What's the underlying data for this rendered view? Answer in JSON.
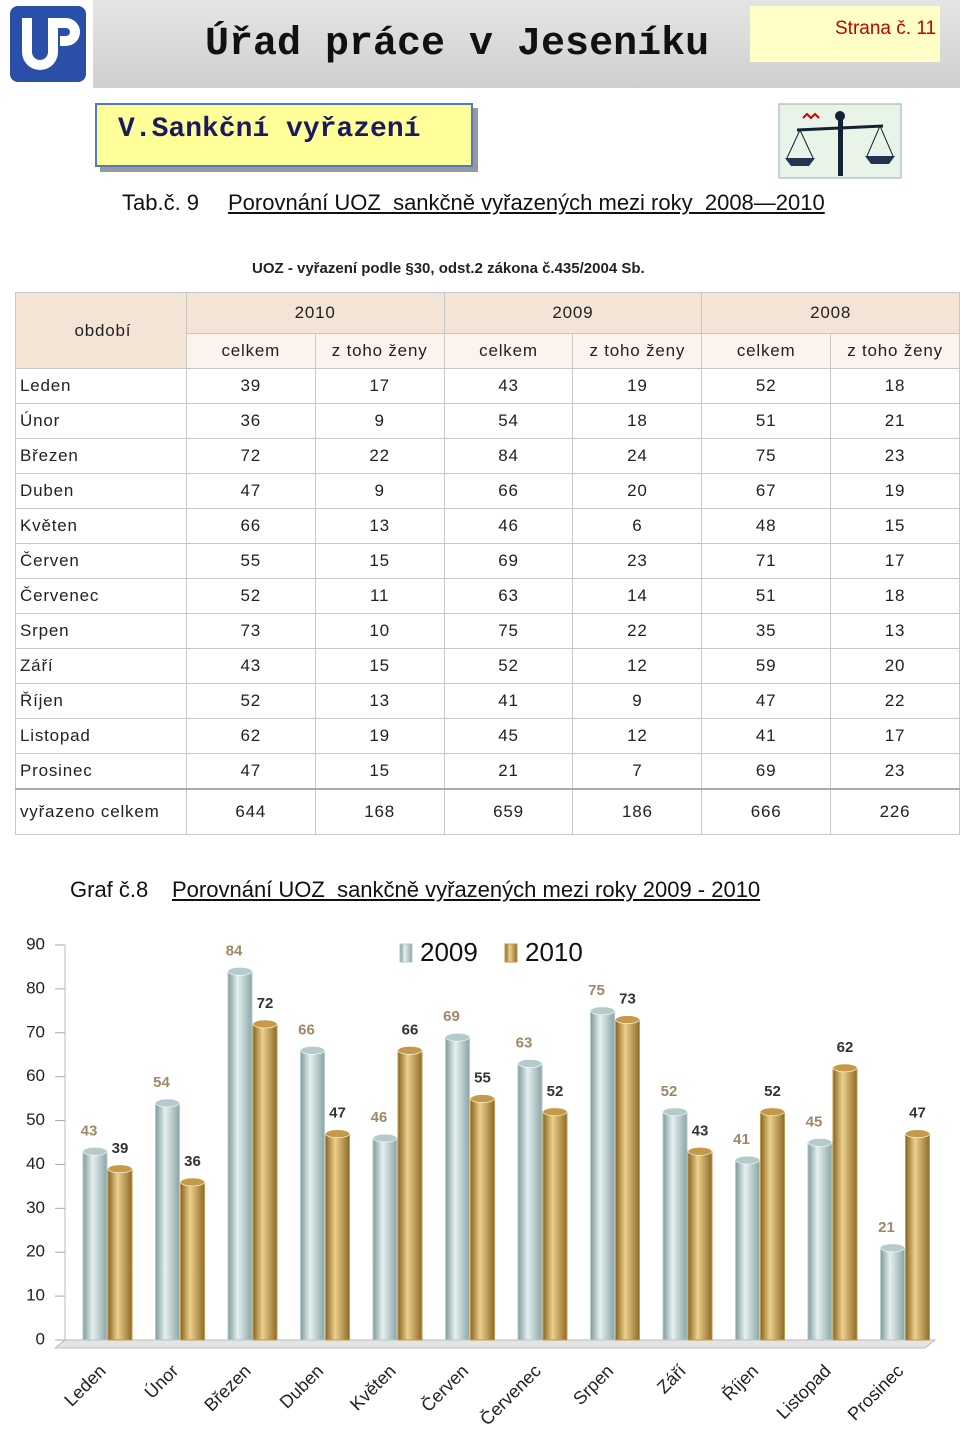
{
  "header": {
    "title": "Úřad práce v Jeseníku",
    "page": "Strana č. 11"
  },
  "section": "V.Sankční vyřazení",
  "table_caption": {
    "number": "Tab.č. 9",
    "text": "Porovnání UOZ  sankčně vyřazených mezi roky  2008—2010"
  },
  "table": {
    "title": "UOZ - vyřazení podle §30, odst.2 zákona č.435/2004 Sb.",
    "period_header": "období",
    "years": [
      "2010",
      "2009",
      "2008"
    ],
    "subheaders": [
      "celkem",
      "z toho ženy"
    ],
    "rows": [
      [
        "Leden",
        39,
        17,
        43,
        19,
        52,
        18
      ],
      [
        "Únor",
        36,
        9,
        54,
        18,
        51,
        21
      ],
      [
        "Březen",
        72,
        22,
        84,
        24,
        75,
        23
      ],
      [
        "Duben",
        47,
        9,
        66,
        20,
        67,
        19
      ],
      [
        "Květen",
        66,
        13,
        46,
        6,
        48,
        15
      ],
      [
        "Červen",
        55,
        15,
        69,
        23,
        71,
        17
      ],
      [
        "Červenec",
        52,
        11,
        63,
        14,
        51,
        18
      ],
      [
        "Srpen",
        73,
        10,
        75,
        22,
        35,
        13
      ],
      [
        "Září",
        43,
        15,
        52,
        12,
        59,
        20
      ],
      [
        "Říjen",
        52,
        13,
        41,
        9,
        47,
        22
      ],
      [
        "Listopad",
        62,
        19,
        45,
        12,
        41,
        17
      ],
      [
        "Prosinec",
        47,
        15,
        21,
        7,
        69,
        23
      ]
    ],
    "total": [
      "vyřazeno celkem",
      644,
      168,
      659,
      186,
      666,
      226
    ]
  },
  "chart_caption": {
    "number": "Graf č.8",
    "text": "Porovnání UOZ  sankčně vyřazených mezi roky 2009 - 2010"
  },
  "chart_data": {
    "type": "bar",
    "categories": [
      "Leden",
      "Únor",
      "Březen",
      "Duben",
      "Květen",
      "Červen",
      "Červenec",
      "Srpen",
      "Září",
      "Říjen",
      "Listopad",
      "Prosinec"
    ],
    "series": [
      {
        "name": "2009",
        "color": "#b4cacb",
        "values": [
          43,
          54,
          84,
          66,
          46,
          69,
          63,
          75,
          52,
          41,
          45,
          21
        ]
      },
      {
        "name": "2010",
        "color": "#c49a48",
        "values": [
          39,
          36,
          72,
          47,
          66,
          55,
          52,
          73,
          43,
          52,
          62,
          47
        ]
      }
    ],
    "ylim": [
      0,
      90
    ],
    "yticks": [
      0,
      10,
      20,
      30,
      40,
      50,
      60,
      70,
      80,
      90
    ],
    "grid": false,
    "legend": "top"
  }
}
